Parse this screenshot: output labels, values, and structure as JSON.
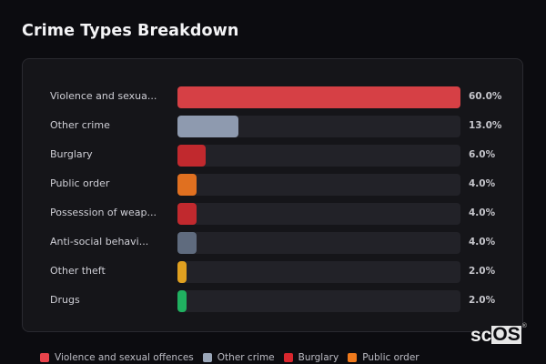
{
  "title": "Crime Types Breakdown",
  "chart_data": {
    "type": "bar",
    "orientation": "horizontal",
    "title": "Crime Types Breakdown",
    "categories": [
      "Violence and sexual offences",
      "Other crime",
      "Burglary",
      "Public order",
      "Possession of weapons",
      "Anti-social behaviour",
      "Other theft",
      "Drugs"
    ],
    "display_labels": [
      "Violence and sexua...",
      "Other crime",
      "Burglary",
      "Public order",
      "Possession of weap...",
      "Anti-social behavi...",
      "Other theft",
      "Drugs"
    ],
    "values": [
      60.0,
      13.0,
      6.0,
      4.0,
      4.0,
      4.0,
      2.0,
      2.0
    ],
    "value_labels": [
      "60.0%",
      "13.0%",
      "6.0%",
      "4.0%",
      "4.0%",
      "4.0%",
      "2.0%",
      "2.0%"
    ],
    "colors": [
      "#d64045",
      "#8e9aaf",
      "#c1292e",
      "#e07020",
      "#c1292e",
      "#5f6b7e",
      "#e0a020",
      "#20b060"
    ],
    "xlim": [
      0,
      60
    ],
    "unit": "%",
    "grid": false,
    "legend_position": "bottom",
    "legend": [
      "Violence and sexual offences",
      "Other crime",
      "Burglary",
      "Public order"
    ]
  },
  "legend": [
    {
      "label": "Violence and sexual offences",
      "color": "#e8434b"
    },
    {
      "label": "Other crime",
      "color": "#9aa6b8"
    },
    {
      "label": "Burglary",
      "color": "#d8262d"
    },
    {
      "label": "Public order",
      "color": "#f07a1c"
    }
  ],
  "rows": [
    {
      "label": "Violence and sexua...",
      "value": "60.0%",
      "pct": 60.0,
      "color": "#d64045"
    },
    {
      "label": "Other crime",
      "value": "13.0%",
      "pct": 13.0,
      "color": "#8e9aaf"
    },
    {
      "label": "Burglary",
      "value": "6.0%",
      "pct": 6.0,
      "color": "#c1292e"
    },
    {
      "label": "Public order",
      "value": "4.0%",
      "pct": 4.0,
      "color": "#e07020"
    },
    {
      "label": "Possession of weap...",
      "value": "4.0%",
      "pct": 4.0,
      "color": "#c1292e"
    },
    {
      "label": "Anti-social behavi...",
      "value": "4.0%",
      "pct": 4.0,
      "color": "#5f6b7e"
    },
    {
      "label": "Other theft",
      "value": "2.0%",
      "pct": 2.0,
      "color": "#e0a020"
    },
    {
      "label": "Drugs",
      "value": "2.0%",
      "pct": 2.0,
      "color": "#20b060"
    }
  ],
  "logo": {
    "part1": "sc",
    "part2": "OS",
    "reg": "®"
  }
}
